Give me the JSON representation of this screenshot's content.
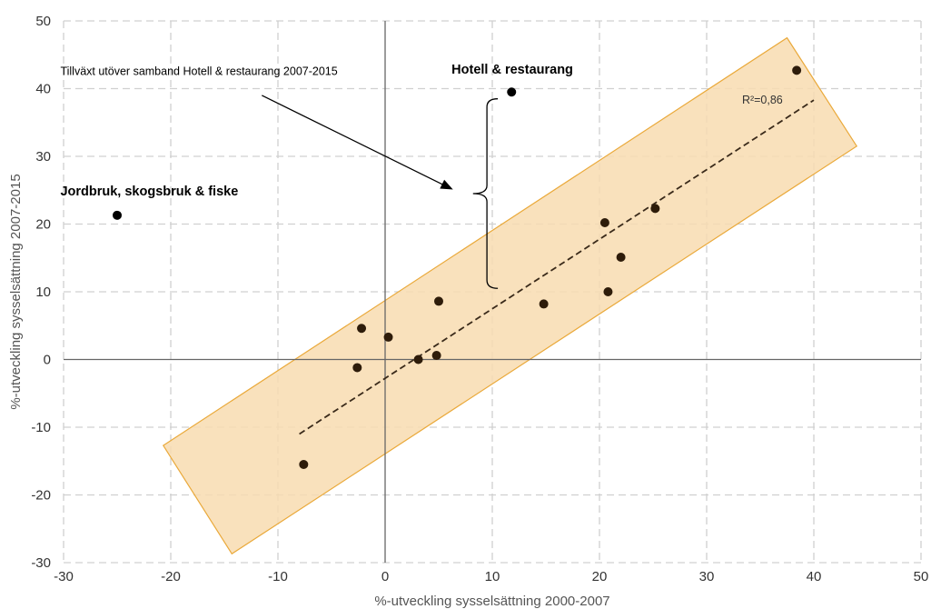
{
  "chart_data": {
    "type": "scatter",
    "title": "",
    "xlabel": "%-utveckling sysselsättning 2000-2007",
    "ylabel": "%-utveckling sysselsättning 2007-2015",
    "xlim": [
      -30,
      50
    ],
    "ylim": [
      -30,
      50
    ],
    "x_ticks": [
      "-30",
      "-20",
      "-10",
      "0",
      "10",
      "20",
      "30",
      "40",
      "50"
    ],
    "y_ticks": [
      "-30",
      "-20",
      "-10",
      "0",
      "10",
      "20",
      "30",
      "40",
      "50"
    ],
    "grid": true,
    "points": [
      {
        "x": -7.6,
        "y": -15.5
      },
      {
        "x": -2.6,
        "y": -1.2
      },
      {
        "x": -2.2,
        "y": 4.6
      },
      {
        "x": 0.3,
        "y": 3.3
      },
      {
        "x": 3.1,
        "y": 0.0
      },
      {
        "x": 4.8,
        "y": 0.6
      },
      {
        "x": 5.0,
        "y": 8.6
      },
      {
        "x": 14.8,
        "y": 8.2
      },
      {
        "x": 20.5,
        "y": 20.2
      },
      {
        "x": 20.8,
        "y": 10.0
      },
      {
        "x": 22.0,
        "y": 15.1
      },
      {
        "x": 25.2,
        "y": 22.3
      },
      {
        "x": 38.4,
        "y": 42.7
      }
    ],
    "highlighted_points": [
      {
        "x": -25.0,
        "y": 21.3,
        "label": "Jordbruk, skogsbruk & fiske"
      },
      {
        "x": 11.8,
        "y": 39.5,
        "label": "Hotell & restaurang"
      }
    ],
    "trendline": {
      "x": [
        -8,
        40
      ],
      "y": [
        -11,
        38.3
      ],
      "style": "dashed",
      "r2_label": "R²=0,86"
    },
    "confidence_band": {
      "corners": [
        [
          -20.7,
          -12.7
        ],
        [
          37.5,
          47.5
        ],
        [
          44.0,
          31.5
        ],
        [
          -14.3,
          -28.7
        ]
      ],
      "fill": "#f8dcb0",
      "stroke": "#eaa93a"
    },
    "annotation": {
      "text": "Tillväxt utöver samband Hotell & restaurang 2007-2015",
      "arrow_from": [
        -11.5,
        39
      ],
      "arrow_to": [
        6.2,
        25.2
      ]
    },
    "brace": {
      "x": 9.5,
      "y_top": 38.5,
      "y_bottom": 10.5,
      "tip_x": 8.2
    }
  },
  "colors": {
    "point": "#2e1c0a",
    "highlight_point": "#000000",
    "grid": "#d0d0d0",
    "axis": "#666666",
    "band_fill": "#f8dcb0",
    "band_stroke": "#eaa93a"
  }
}
